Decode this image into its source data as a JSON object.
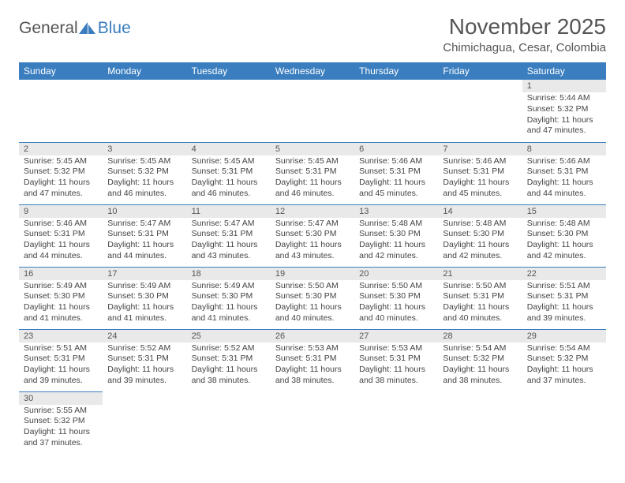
{
  "logo": {
    "part1": "General",
    "part2": "Blue"
  },
  "title": "November 2025",
  "location": "Chimichagua, Cesar, Colombia",
  "header_bg": "#3a7ebf",
  "day_headers": [
    "Sunday",
    "Monday",
    "Tuesday",
    "Wednesday",
    "Thursday",
    "Friday",
    "Saturday"
  ],
  "weeks": [
    [
      null,
      null,
      null,
      null,
      null,
      null,
      {
        "n": "1",
        "sunrise": "Sunrise: 5:44 AM",
        "sunset": "Sunset: 5:32 PM",
        "daylight": "Daylight: 11 hours and 47 minutes."
      }
    ],
    [
      {
        "n": "2",
        "sunrise": "Sunrise: 5:45 AM",
        "sunset": "Sunset: 5:32 PM",
        "daylight": "Daylight: 11 hours and 47 minutes."
      },
      {
        "n": "3",
        "sunrise": "Sunrise: 5:45 AM",
        "sunset": "Sunset: 5:32 PM",
        "daylight": "Daylight: 11 hours and 46 minutes."
      },
      {
        "n": "4",
        "sunrise": "Sunrise: 5:45 AM",
        "sunset": "Sunset: 5:31 PM",
        "daylight": "Daylight: 11 hours and 46 minutes."
      },
      {
        "n": "5",
        "sunrise": "Sunrise: 5:45 AM",
        "sunset": "Sunset: 5:31 PM",
        "daylight": "Daylight: 11 hours and 46 minutes."
      },
      {
        "n": "6",
        "sunrise": "Sunrise: 5:46 AM",
        "sunset": "Sunset: 5:31 PM",
        "daylight": "Daylight: 11 hours and 45 minutes."
      },
      {
        "n": "7",
        "sunrise": "Sunrise: 5:46 AM",
        "sunset": "Sunset: 5:31 PM",
        "daylight": "Daylight: 11 hours and 45 minutes."
      },
      {
        "n": "8",
        "sunrise": "Sunrise: 5:46 AM",
        "sunset": "Sunset: 5:31 PM",
        "daylight": "Daylight: 11 hours and 44 minutes."
      }
    ],
    [
      {
        "n": "9",
        "sunrise": "Sunrise: 5:46 AM",
        "sunset": "Sunset: 5:31 PM",
        "daylight": "Daylight: 11 hours and 44 minutes."
      },
      {
        "n": "10",
        "sunrise": "Sunrise: 5:47 AM",
        "sunset": "Sunset: 5:31 PM",
        "daylight": "Daylight: 11 hours and 44 minutes."
      },
      {
        "n": "11",
        "sunrise": "Sunrise: 5:47 AM",
        "sunset": "Sunset: 5:31 PM",
        "daylight": "Daylight: 11 hours and 43 minutes."
      },
      {
        "n": "12",
        "sunrise": "Sunrise: 5:47 AM",
        "sunset": "Sunset: 5:30 PM",
        "daylight": "Daylight: 11 hours and 43 minutes."
      },
      {
        "n": "13",
        "sunrise": "Sunrise: 5:48 AM",
        "sunset": "Sunset: 5:30 PM",
        "daylight": "Daylight: 11 hours and 42 minutes."
      },
      {
        "n": "14",
        "sunrise": "Sunrise: 5:48 AM",
        "sunset": "Sunset: 5:30 PM",
        "daylight": "Daylight: 11 hours and 42 minutes."
      },
      {
        "n": "15",
        "sunrise": "Sunrise: 5:48 AM",
        "sunset": "Sunset: 5:30 PM",
        "daylight": "Daylight: 11 hours and 42 minutes."
      }
    ],
    [
      {
        "n": "16",
        "sunrise": "Sunrise: 5:49 AM",
        "sunset": "Sunset: 5:30 PM",
        "daylight": "Daylight: 11 hours and 41 minutes."
      },
      {
        "n": "17",
        "sunrise": "Sunrise: 5:49 AM",
        "sunset": "Sunset: 5:30 PM",
        "daylight": "Daylight: 11 hours and 41 minutes."
      },
      {
        "n": "18",
        "sunrise": "Sunrise: 5:49 AM",
        "sunset": "Sunset: 5:30 PM",
        "daylight": "Daylight: 11 hours and 41 minutes."
      },
      {
        "n": "19",
        "sunrise": "Sunrise: 5:50 AM",
        "sunset": "Sunset: 5:30 PM",
        "daylight": "Daylight: 11 hours and 40 minutes."
      },
      {
        "n": "20",
        "sunrise": "Sunrise: 5:50 AM",
        "sunset": "Sunset: 5:30 PM",
        "daylight": "Daylight: 11 hours and 40 minutes."
      },
      {
        "n": "21",
        "sunrise": "Sunrise: 5:50 AM",
        "sunset": "Sunset: 5:31 PM",
        "daylight": "Daylight: 11 hours and 40 minutes."
      },
      {
        "n": "22",
        "sunrise": "Sunrise: 5:51 AM",
        "sunset": "Sunset: 5:31 PM",
        "daylight": "Daylight: 11 hours and 39 minutes."
      }
    ],
    [
      {
        "n": "23",
        "sunrise": "Sunrise: 5:51 AM",
        "sunset": "Sunset: 5:31 PM",
        "daylight": "Daylight: 11 hours and 39 minutes."
      },
      {
        "n": "24",
        "sunrise": "Sunrise: 5:52 AM",
        "sunset": "Sunset: 5:31 PM",
        "daylight": "Daylight: 11 hours and 39 minutes."
      },
      {
        "n": "25",
        "sunrise": "Sunrise: 5:52 AM",
        "sunset": "Sunset: 5:31 PM",
        "daylight": "Daylight: 11 hours and 38 minutes."
      },
      {
        "n": "26",
        "sunrise": "Sunrise: 5:53 AM",
        "sunset": "Sunset: 5:31 PM",
        "daylight": "Daylight: 11 hours and 38 minutes."
      },
      {
        "n": "27",
        "sunrise": "Sunrise: 5:53 AM",
        "sunset": "Sunset: 5:31 PM",
        "daylight": "Daylight: 11 hours and 38 minutes."
      },
      {
        "n": "28",
        "sunrise": "Sunrise: 5:54 AM",
        "sunset": "Sunset: 5:32 PM",
        "daylight": "Daylight: 11 hours and 38 minutes."
      },
      {
        "n": "29",
        "sunrise": "Sunrise: 5:54 AM",
        "sunset": "Sunset: 5:32 PM",
        "daylight": "Daylight: 11 hours and 37 minutes."
      }
    ],
    [
      {
        "n": "30",
        "sunrise": "Sunrise: 5:55 AM",
        "sunset": "Sunset: 5:32 PM",
        "daylight": "Daylight: 11 hours and 37 minutes."
      },
      null,
      null,
      null,
      null,
      null,
      null
    ]
  ]
}
